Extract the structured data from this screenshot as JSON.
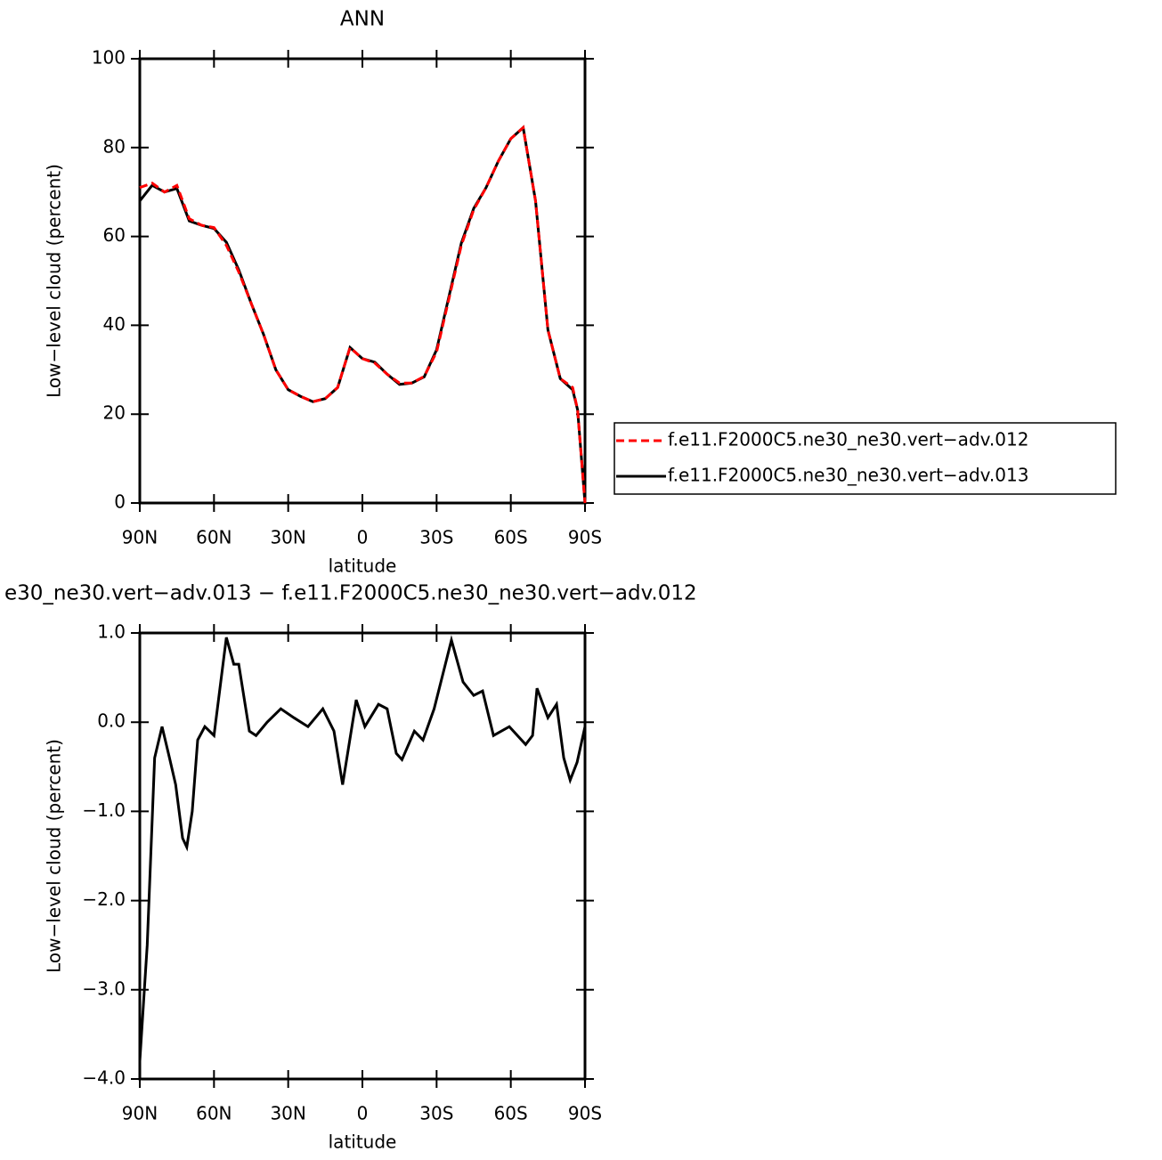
{
  "chart_data": [
    {
      "type": "line",
      "title": "ANN",
      "xlabel": "latitude",
      "ylabel": "Low−level cloud (percent)",
      "x": [
        90,
        85,
        80,
        75,
        70,
        65,
        60,
        55,
        50,
        45,
        40,
        35,
        30,
        25,
        20,
        15,
        10,
        5,
        0,
        -5,
        -10,
        -15,
        -20,
        -25,
        -30,
        -35,
        -40,
        -45,
        -50,
        -55,
        -60,
        -65,
        -70,
        -75,
        -80,
        -85,
        -87,
        -90
      ],
      "series": [
        {
          "name": "f.e11.F2000C5.ne30_ne30.vert−adv.012",
          "color": "#ff0000",
          "dash": true,
          "values": [
            71,
            72,
            70,
            71.5,
            64,
            62.5,
            62,
            58,
            52,
            45,
            38,
            30,
            25.5,
            24,
            22.8,
            23.5,
            26,
            35,
            32.5,
            31.5,
            29,
            27,
            27,
            28.5,
            34,
            46,
            58,
            66,
            71,
            77,
            82,
            84.5,
            68,
            39,
            28,
            26,
            21,
            0
          ]
        },
        {
          "name": "f.e11.F2000C5.ne30_ne30.vert−adv.013",
          "color": "#000000",
          "dash": false,
          "values": [
            68,
            71.5,
            70,
            70.8,
            63.5,
            62.5,
            61.8,
            58.7,
            52.5,
            45,
            38,
            30,
            25.5,
            24,
            22.8,
            23.5,
            26,
            35,
            32.5,
            31.7,
            29,
            26.7,
            27,
            28.4,
            34.5,
            46.5,
            58.5,
            66.3,
            71,
            77,
            82,
            84.5,
            68,
            39,
            28,
            25.5,
            21,
            0
          ]
        }
      ],
      "xlim": [
        90,
        -90
      ],
      "xticks": [
        {
          "value": 90,
          "label": "90N"
        },
        {
          "value": 60,
          "label": "60N"
        },
        {
          "value": 30,
          "label": "30N"
        },
        0,
        {
          "value": -30,
          "label": "30S"
        },
        {
          "value": -60,
          "label": "60S"
        },
        {
          "value": -90,
          "label": "90S"
        }
      ],
      "ylim": [
        0,
        100
      ],
      "yticks": [
        0,
        20,
        40,
        60,
        80,
        100
      ],
      "legend": "right"
    },
    {
      "type": "line",
      "title": "e30_ne30.vert−adv.013 − f.e11.F2000C5.ne30_ne30.vert−adv.012",
      "xlabel": "latitude",
      "ylabel": "Low−level cloud (percent)",
      "x": [
        90,
        87,
        84,
        81,
        78,
        75.5,
        72.7,
        71,
        68.8,
        66.6,
        63.7,
        60,
        55,
        52,
        50,
        45.7,
        43,
        38.5,
        33,
        27.7,
        22,
        16,
        11.5,
        8,
        2.5,
        -1,
        -6.5,
        -10,
        -13.7,
        -16,
        -21,
        -24.5,
        -29,
        -36,
        -40.7,
        -45,
        -48.6,
        -53,
        -59.4,
        -66,
        -68.8,
        -70.6,
        -75,
        -78.5,
        -81.4,
        -84,
        -86.8,
        -90
      ],
      "color": "#000000",
      "values": [
        -3.8,
        -2.5,
        -0.4,
        -0.05,
        -0.4,
        -0.7,
        -1.3,
        -1.4,
        -1.0,
        -0.2,
        -0.05,
        -0.15,
        0.95,
        0.65,
        0.65,
        -0.1,
        -0.15,
        0.0,
        0.15,
        0.05,
        -0.05,
        0.15,
        -0.1,
        -0.7,
        0.25,
        -0.05,
        0.2,
        0.15,
        -0.35,
        -0.42,
        -0.1,
        -0.2,
        0.15,
        0.92,
        0.45,
        0.3,
        0.35,
        -0.15,
        -0.05,
        -0.25,
        -0.15,
        0.38,
        0.05,
        0.2,
        -0.4,
        -0.65,
        -0.45,
        -0.05
      ],
      "xlim": [
        90,
        -90
      ],
      "xticks": [
        {
          "value": 90,
          "label": "90N"
        },
        {
          "value": 60,
          "label": "60N"
        },
        {
          "value": 30,
          "label": "30N"
        },
        0,
        {
          "value": -30,
          "label": "30S"
        },
        {
          "value": -60,
          "label": "60S"
        },
        {
          "value": -90,
          "label": "90S"
        }
      ],
      "ylim": [
        -4,
        1
      ],
      "yticks": [
        {
          "value": 1,
          "label": "1.0"
        },
        {
          "value": 0,
          "label": "0.0"
        },
        {
          "value": -1,
          "label": "−1.0"
        },
        {
          "value": -2,
          "label": "−2.0"
        },
        {
          "value": -3,
          "label": "−3.0"
        },
        {
          "value": -4,
          "label": "−4.0"
        }
      ]
    }
  ]
}
